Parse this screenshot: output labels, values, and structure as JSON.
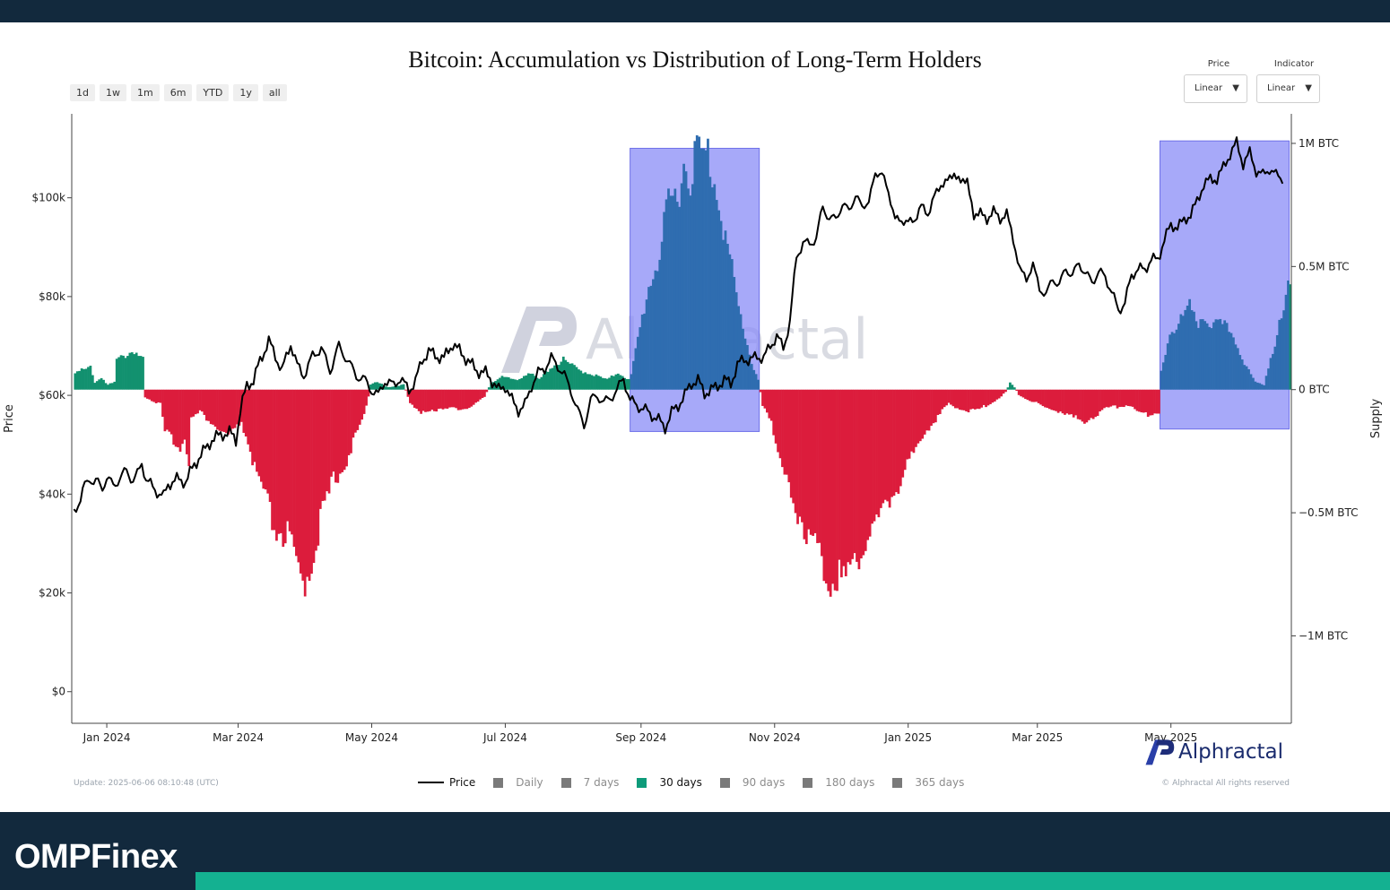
{
  "brand": {
    "name": "OMPFinex"
  },
  "toolbar": {
    "ranges": [
      "1d",
      "1w",
      "1m",
      "6m",
      "YTD",
      "1y",
      "all"
    ],
    "price_scale": {
      "label": "Price",
      "value": "Linear"
    },
    "indicator_scale": {
      "label": "Indicator",
      "value": "Linear"
    }
  },
  "footer": {
    "update": "Update: 2025-06-06 08:10:48 (UTC)",
    "copyright": "© Alphractal All rights reserved",
    "logo_text": "Alphractal",
    "watermark_text": "Alphractal"
  },
  "legend": [
    {
      "label": "Price",
      "kind": "line",
      "active": true,
      "color": "#000000"
    },
    {
      "label": "Daily",
      "kind": "square",
      "active": false,
      "color": "#808080"
    },
    {
      "label": "7 days",
      "kind": "square",
      "active": false,
      "color": "#808080"
    },
    {
      "label": "30 days",
      "kind": "square",
      "active": true,
      "color": "#0e9b7a"
    },
    {
      "label": "90 days",
      "kind": "square",
      "active": false,
      "color": "#808080"
    },
    {
      "label": "180 days",
      "kind": "square",
      "active": false,
      "color": "#808080"
    },
    {
      "label": "365 days",
      "kind": "square",
      "active": false,
      "color": "#808080"
    }
  ],
  "colors": {
    "accumulation": "#12916f",
    "distribution": "#dc1c3c",
    "highlight_fill": "#8a8cf7",
    "highlighted_bar": "#2f6db0",
    "price_line": "#000000",
    "brand_bg": "#12293d",
    "brand_accent": "#14b191"
  },
  "chart_data": {
    "type": "bar+line",
    "title": "Bitcoin: Accumulation vs Distribution of Long-Term Holders",
    "y_left_label": "Price",
    "y_right_label": "Supply",
    "y_left_ticks": [
      {
        "value": 0,
        "label": "$0"
      },
      {
        "value": 20000,
        "label": "$20k"
      },
      {
        "value": 40000,
        "label": "$40k"
      },
      {
        "value": 60000,
        "label": "$60k"
      },
      {
        "value": 80000,
        "label": "$80k"
      },
      {
        "value": 100000,
        "label": "$100k"
      }
    ],
    "y_left_range": [
      -6400,
      117000
    ],
    "y_right_ticks": [
      {
        "value": 1000000,
        "label": "1M BTC"
      },
      {
        "value": 500000,
        "label": "0.5M BTC"
      },
      {
        "value": 0,
        "label": "0 BTC"
      },
      {
        "value": -500000,
        "label": "−0.5M BTC"
      },
      {
        "value": -1000000,
        "label": "−1M BTC"
      }
    ],
    "y_right_range": [
      -1355000,
      1120000
    ],
    "x_range_days": [
      -16,
      541
    ],
    "x_ticks": [
      {
        "day": 0,
        "label": "Jan 2024"
      },
      {
        "day": 60,
        "label": "Mar 2024"
      },
      {
        "day": 121,
        "label": "May 2024"
      },
      {
        "day": 182,
        "label": "Jul 2024"
      },
      {
        "day": 244,
        "label": "Sep 2024"
      },
      {
        "day": 305,
        "label": "Nov 2024"
      },
      {
        "day": 366,
        "label": "Jan 2025"
      },
      {
        "day": 425,
        "label": "Mar 2025"
      },
      {
        "day": 486,
        "label": "May 2025"
      }
    ],
    "highlight_regions": [
      {
        "start_day": 239,
        "end_day": 298,
        "y_top": 980000,
        "y_bottom": -170000
      },
      {
        "start_day": 481,
        "end_day": 540,
        "y_top": 1010000,
        "y_bottom": -160000
      }
    ],
    "supply_keypoints_30d": [
      [
        -15,
        70000
      ],
      [
        -8,
        90000
      ],
      [
        -6,
        30000
      ],
      [
        -3,
        50000
      ],
      [
        0,
        20000
      ],
      [
        3,
        30000
      ],
      [
        4,
        120000
      ],
      [
        8,
        140000
      ],
      [
        12,
        160000
      ],
      [
        16,
        120000
      ],
      [
        17,
        -30000
      ],
      [
        24,
        -60000
      ],
      [
        26,
        -180000
      ],
      [
        30,
        -200000
      ],
      [
        33,
        -240000
      ],
      [
        35,
        -190000
      ],
      [
        37,
        -280000
      ],
      [
        38,
        -120000
      ],
      [
        42,
        -90000
      ],
      [
        48,
        -140000
      ],
      [
        54,
        -190000
      ],
      [
        58,
        -170000
      ],
      [
        61,
        -130000
      ],
      [
        65,
        -250000
      ],
      [
        68,
        -360000
      ],
      [
        72,
        -450000
      ],
      [
        76,
        -560000
      ],
      [
        82,
        -600000
      ],
      [
        86,
        -720000
      ],
      [
        88,
        -800000
      ],
      [
        92,
        -730000
      ],
      [
        95,
        -600000
      ],
      [
        99,
        -480000
      ],
      [
        103,
        -370000
      ],
      [
        108,
        -300000
      ],
      [
        112,
        -220000
      ],
      [
        116,
        -130000
      ],
      [
        118,
        -70000
      ],
      [
        120,
        20000
      ],
      [
        123,
        30000
      ],
      [
        128,
        10000
      ],
      [
        135,
        20000
      ],
      [
        138,
        -50000
      ],
      [
        143,
        -100000
      ],
      [
        150,
        -80000
      ],
      [
        155,
        -70000
      ],
      [
        162,
        -90000
      ],
      [
        165,
        -70000
      ],
      [
        168,
        -50000
      ],
      [
        172,
        -30000
      ],
      [
        175,
        30000
      ],
      [
        180,
        50000
      ],
      [
        187,
        40000
      ],
      [
        192,
        70000
      ],
      [
        197,
        40000
      ],
      [
        202,
        90000
      ],
      [
        208,
        120000
      ],
      [
        215,
        80000
      ],
      [
        222,
        60000
      ],
      [
        228,
        40000
      ],
      [
        233,
        70000
      ],
      [
        238,
        40000
      ],
      [
        239,
        60000
      ],
      [
        243,
        250000
      ],
      [
        247,
        420000
      ],
      [
        252,
        550000
      ],
      [
        256,
        740000
      ],
      [
        260,
        800000
      ],
      [
        263,
        920000
      ],
      [
        265,
        870000
      ],
      [
        268,
        940000
      ],
      [
        270,
        980000
      ],
      [
        272,
        920000
      ],
      [
        274,
        960000
      ],
      [
        276,
        880000
      ],
      [
        279,
        800000
      ],
      [
        282,
        620000
      ],
      [
        285,
        480000
      ],
      [
        288,
        330000
      ],
      [
        291,
        220000
      ],
      [
        294,
        110000
      ],
      [
        297,
        40000
      ],
      [
        299,
        -60000
      ],
      [
        303,
        -120000
      ],
      [
        306,
        -280000
      ],
      [
        310,
        -370000
      ],
      [
        315,
        -490000
      ],
      [
        318,
        -550000
      ],
      [
        322,
        -610000
      ],
      [
        326,
        -700000
      ],
      [
        330,
        -760000
      ],
      [
        333,
        -740000
      ],
      [
        336,
        -780000
      ],
      [
        340,
        -700000
      ],
      [
        344,
        -650000
      ],
      [
        348,
        -580000
      ],
      [
        353,
        -520000
      ],
      [
        357,
        -440000
      ],
      [
        362,
        -370000
      ],
      [
        367,
        -280000
      ],
      [
        372,
        -180000
      ],
      [
        378,
        -120000
      ],
      [
        384,
        -60000
      ],
      [
        388,
        -70000
      ],
      [
        393,
        -90000
      ],
      [
        398,
        -80000
      ],
      [
        402,
        -60000
      ],
      [
        406,
        -40000
      ],
      [
        410,
        -10000
      ],
      [
        412,
        30000
      ],
      [
        414,
        10000
      ],
      [
        416,
        -20000
      ],
      [
        420,
        -40000
      ],
      [
        425,
        -60000
      ],
      [
        430,
        -80000
      ],
      [
        436,
        -90000
      ],
      [
        440,
        -110000
      ],
      [
        445,
        -130000
      ],
      [
        450,
        -110000
      ],
      [
        455,
        -80000
      ],
      [
        460,
        -70000
      ],
      [
        466,
        -60000
      ],
      [
        470,
        -90000
      ],
      [
        475,
        -100000
      ],
      [
        480,
        -90000
      ],
      [
        481,
        70000
      ],
      [
        485,
        230000
      ],
      [
        490,
        280000
      ],
      [
        494,
        330000
      ],
      [
        497,
        260000
      ],
      [
        500,
        300000
      ],
      [
        506,
        260000
      ],
      [
        512,
        250000
      ],
      [
        516,
        180000
      ],
      [
        520,
        90000
      ],
      [
        524,
        30000
      ],
      [
        528,
        20000
      ],
      [
        531,
        130000
      ],
      [
        534,
        230000
      ],
      [
        537,
        300000
      ],
      [
        539,
        440000
      ],
      [
        541,
        380000
      ]
    ],
    "price_keypoints": [
      [
        -15,
        37000
      ],
      [
        -12,
        38500
      ],
      [
        -10,
        42000
      ],
      [
        -8,
        43500
      ],
      [
        -6,
        42000
      ],
      [
        -4,
        42500
      ],
      [
        -2,
        41500
      ],
      [
        0,
        43000
      ],
      [
        3,
        42000
      ],
      [
        6,
        43000
      ],
      [
        9,
        45000
      ],
      [
        12,
        42500
      ],
      [
        14,
        44000
      ],
      [
        16,
        46500
      ],
      [
        18,
        42800
      ],
      [
        21,
        41500
      ],
      [
        24,
        40000
      ],
      [
        26,
        39500
      ],
      [
        28,
        42000
      ],
      [
        32,
        43000
      ],
      [
        36,
        42500
      ],
      [
        40,
        46000
      ],
      [
        44,
        48500
      ],
      [
        48,
        51000
      ],
      [
        52,
        52000
      ],
      [
        56,
        52500
      ],
      [
        59,
        51000
      ],
      [
        61,
        57000
      ],
      [
        64,
        62000
      ],
      [
        67,
        63000
      ],
      [
        70,
        67000
      ],
      [
        74,
        71000
      ],
      [
        77,
        68000
      ],
      [
        80,
        65000
      ],
      [
        84,
        70500
      ],
      [
        87,
        66000
      ],
      [
        90,
        64000
      ],
      [
        94,
        68000
      ],
      [
        98,
        69500
      ],
      [
        102,
        65000
      ],
      [
        106,
        70000
      ],
      [
        110,
        67000
      ],
      [
        114,
        64000
      ],
      [
        118,
        63000
      ],
      [
        121,
        61000
      ],
      [
        124,
        60000
      ],
      [
        127,
        63000
      ],
      [
        131,
        62000
      ],
      [
        134,
        63500
      ],
      [
        138,
        61000
      ],
      [
        141,
        63000
      ],
      [
        144,
        67000
      ],
      [
        147,
        69000
      ],
      [
        150,
        68000
      ],
      [
        154,
        67500
      ],
      [
        158,
        70500
      ],
      [
        161,
        69000
      ],
      [
        165,
        67000
      ],
      [
        169,
        65000
      ],
      [
        173,
        64500
      ],
      [
        176,
        63000
      ],
      [
        179,
        61000
      ],
      [
        182,
        62000
      ],
      [
        185,
        59000
      ],
      [
        188,
        57000
      ],
      [
        191,
        58000
      ],
      [
        194,
        62000
      ],
      [
        197,
        64500
      ],
      [
        200,
        65500
      ],
      [
        203,
        67500
      ],
      [
        206,
        66000
      ],
      [
        209,
        64000
      ],
      [
        212,
        61000
      ],
      [
        215,
        57000
      ],
      [
        218,
        54000
      ],
      [
        221,
        59000
      ],
      [
        224,
        60000
      ],
      [
        227,
        58500
      ],
      [
        230,
        59500
      ],
      [
        233,
        61000
      ],
      [
        236,
        63500
      ],
      [
        239,
        59000
      ],
      [
        242,
        58000
      ],
      [
        246,
        57000
      ],
      [
        249,
        56000
      ],
      [
        252,
        55000
      ],
      [
        255,
        53500
      ],
      [
        258,
        56500
      ],
      [
        261,
        58000
      ],
      [
        264,
        60000
      ],
      [
        267,
        62500
      ],
      [
        270,
        63000
      ],
      [
        273,
        60500
      ],
      [
        276,
        61000
      ],
      [
        279,
        62000
      ],
      [
        282,
        63000
      ],
      [
        285,
        62500
      ],
      [
        288,
        66000
      ],
      [
        291,
        67500
      ],
      [
        294,
        67000
      ],
      [
        297,
        68000
      ],
      [
        300,
        67500
      ],
      [
        303,
        70000
      ],
      [
        306,
        72000
      ],
      [
        309,
        69500
      ],
      [
        312,
        75000
      ],
      [
        315,
        88000
      ],
      [
        318,
        91000
      ],
      [
        321,
        90500
      ],
      [
        324,
        92000
      ],
      [
        327,
        98000
      ],
      [
        330,
        96000
      ],
      [
        333,
        95500
      ],
      [
        336,
        99000
      ],
      [
        339,
        97000
      ],
      [
        342,
        101000
      ],
      [
        345,
        97500
      ],
      [
        348,
        100000
      ],
      [
        351,
        104000
      ],
      [
        354,
        106000
      ],
      [
        357,
        100000
      ],
      [
        360,
        97000
      ],
      [
        363,
        94000
      ],
      [
        366,
        96500
      ],
      [
        369,
        94000
      ],
      [
        372,
        100000
      ],
      [
        375,
        95000
      ],
      [
        378,
        102000
      ],
      [
        381,
        101000
      ],
      [
        384,
        105000
      ],
      [
        387,
        103500
      ],
      [
        390,
        104500
      ],
      [
        393,
        102500
      ],
      [
        396,
        97000
      ],
      [
        399,
        96500
      ],
      [
        402,
        96000
      ],
      [
        405,
        97000
      ],
      [
        408,
        96000
      ],
      [
        411,
        96500
      ],
      [
        414,
        92000
      ],
      [
        417,
        85000
      ],
      [
        420,
        84000
      ],
      [
        423,
        86000
      ],
      [
        426,
        82000
      ],
      [
        429,
        80000
      ],
      [
        432,
        84000
      ],
      [
        435,
        82000
      ],
      [
        438,
        86000
      ],
      [
        441,
        84000
      ],
      [
        444,
        87000
      ],
      [
        447,
        84500
      ],
      [
        450,
        83000
      ],
      [
        453,
        85000
      ],
      [
        456,
        84000
      ],
      [
        459,
        81000
      ],
      [
        462,
        77000
      ],
      [
        465,
        79000
      ],
      [
        468,
        84000
      ],
      [
        471,
        86000
      ],
      [
        474,
        85000
      ],
      [
        477,
        88000
      ],
      [
        480,
        87000
      ],
      [
        483,
        92000
      ],
      [
        486,
        94000
      ],
      [
        489,
        94500
      ],
      [
        492,
        95000
      ],
      [
        495,
        97000
      ],
      [
        498,
        99000
      ],
      [
        501,
        103000
      ],
      [
        504,
        103500
      ],
      [
        507,
        104000
      ],
      [
        510,
        106000
      ],
      [
        513,
        109000
      ],
      [
        516,
        111000
      ],
      [
        519,
        107000
      ],
      [
        522,
        109000
      ],
      [
        525,
        105500
      ],
      [
        528,
        104500
      ],
      [
        531,
        106000
      ],
      [
        534,
        104500
      ],
      [
        537,
        104000
      ]
    ]
  }
}
